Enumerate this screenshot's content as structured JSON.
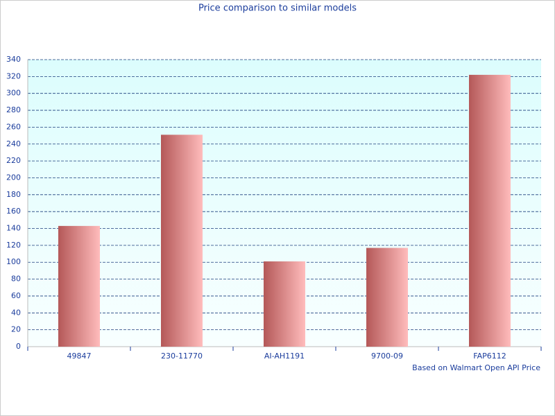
{
  "chart_data": {
    "type": "bar",
    "title": "Price comparison to similar models",
    "footnote": "Based on Walmart Open API Price",
    "categories": [
      "49847",
      "230-11770",
      "AI-AH1191",
      "9700-09",
      "FAP6112"
    ],
    "values": [
      143,
      251,
      101,
      117,
      322
    ],
    "color": "#c06868",
    "ylim": [
      0,
      340
    ],
    "yticks": [
      0,
      20,
      40,
      60,
      80,
      100,
      120,
      140,
      160,
      180,
      200,
      220,
      240,
      260,
      280,
      300,
      320,
      340
    ],
    "grid": true
  }
}
